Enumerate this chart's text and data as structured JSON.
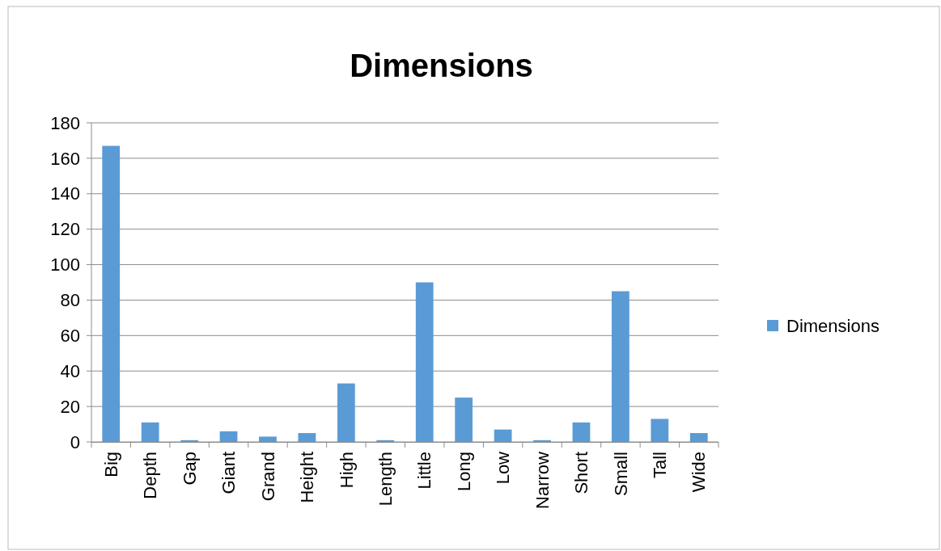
{
  "chart_data": {
    "type": "bar",
    "title": "Dimensions",
    "categories": [
      "Big",
      "Depth",
      "Gap",
      "Giant",
      "Grand",
      "Height",
      "High",
      "Length",
      "Little",
      "Long",
      "Low",
      "Narrow",
      "Short",
      "Small",
      "Tall",
      "Wide"
    ],
    "series": [
      {
        "name": "Dimensions",
        "color": "#5b9bd5",
        "values": [
          167,
          11,
          1,
          6,
          3,
          5,
          33,
          1,
          90,
          25,
          7,
          1,
          11,
          85,
          13,
          5
        ]
      }
    ],
    "ylim": [
      0,
      180
    ],
    "yticks": [
      0,
      20,
      40,
      60,
      80,
      100,
      120,
      140,
      160,
      180
    ],
    "grid": "y",
    "legend": "right"
  }
}
